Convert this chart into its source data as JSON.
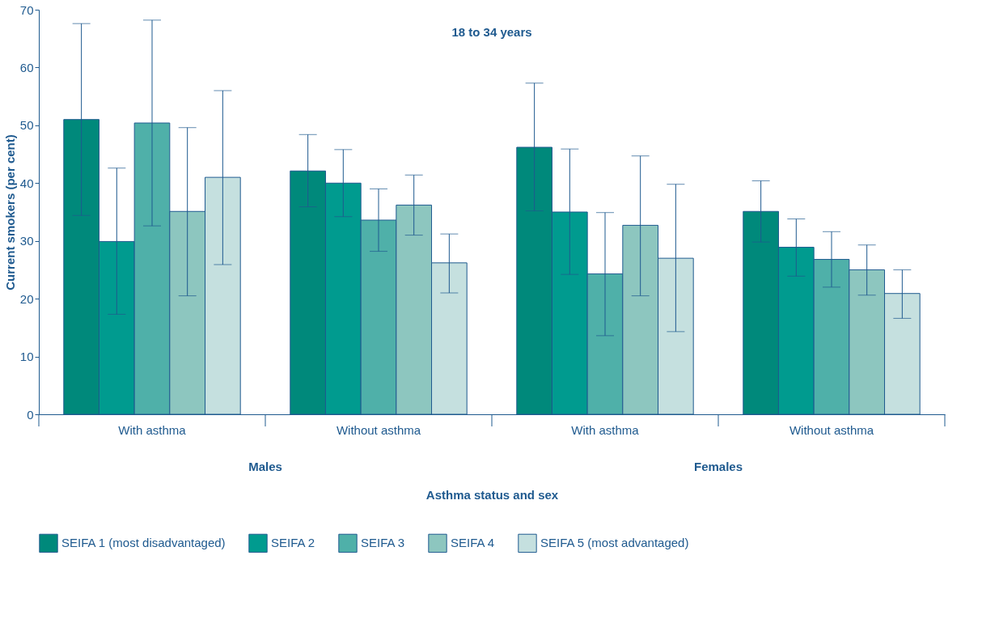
{
  "chart_data": {
    "type": "bar",
    "title": "18 to 34 years",
    "xlabel": "Asthma status and sex",
    "ylabel": "Current smokers (per cent)",
    "categories": [
      "With asthma",
      "Without asthma",
      "With asthma",
      "Without asthma"
    ],
    "annotations": [
      "Males",
      "Females"
    ],
    "series": [
      {
        "name": "SEIFA 1 (most disadvantaged)",
        "color": "#00897b",
        "values": [
          51.0,
          42.1,
          46.2,
          35.1
        ],
        "errors": [
          [
            34.4,
            67.6
          ],
          [
            35.9,
            48.4
          ],
          [
            35.2,
            57.3
          ],
          [
            29.8,
            40.4
          ]
        ]
      },
      {
        "name": "SEIFA 2",
        "color": "#009b8f",
        "values": [
          29.9,
          40.0,
          35.0,
          28.9
        ],
        "errors": [
          [
            17.3,
            42.6
          ],
          [
            34.2,
            45.8
          ],
          [
            24.2,
            45.9
          ],
          [
            23.9,
            33.8
          ]
        ]
      },
      {
        "name": "SEIFA 3",
        "color": "#4fb0a9",
        "values": [
          50.4,
          33.6,
          24.3,
          26.8
        ],
        "errors": [
          [
            32.6,
            68.2
          ],
          [
            28.2,
            39.0
          ],
          [
            13.6,
            34.9
          ],
          [
            22.0,
            31.6
          ]
        ]
      },
      {
        "name": "SEIFA 4",
        "color": "#8dc6bf",
        "values": [
          35.1,
          36.2,
          32.7,
          25.0
        ],
        "errors": [
          [
            20.5,
            49.6
          ],
          [
            31.0,
            41.4
          ],
          [
            20.5,
            44.7
          ],
          [
            20.6,
            29.3
          ]
        ]
      },
      {
        "name": "SEIFA 5 (most advantaged)",
        "color": "#c5e0df",
        "values": [
          41.0,
          26.2,
          27.0,
          20.9
        ],
        "errors": [
          [
            25.9,
            56.0
          ],
          [
            21.0,
            31.2
          ],
          [
            14.3,
            39.8
          ],
          [
            16.6,
            25.0
          ]
        ]
      }
    ],
    "ylim": [
      0,
      70
    ],
    "yticks": [
      0,
      10,
      20,
      30,
      40,
      50,
      60,
      70
    ],
    "grid": false,
    "legend": "bottom"
  }
}
